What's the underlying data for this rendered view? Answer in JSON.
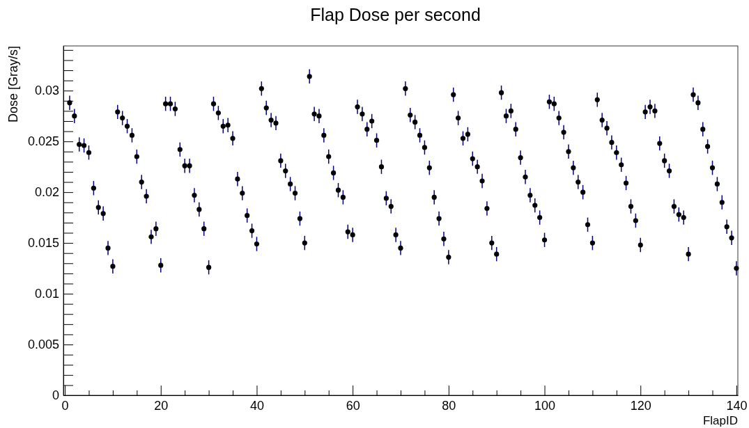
{
  "chart_data": {
    "type": "scatter",
    "title": "Flap Dose per second",
    "xlabel": "FlapID",
    "ylabel": "Dose [Gray/s]",
    "x": [
      1,
      2,
      3,
      4,
      5,
      6,
      7,
      8,
      9,
      10,
      11,
      12,
      13,
      14,
      15,
      16,
      17,
      18,
      19,
      20,
      21,
      22,
      23,
      24,
      25,
      26,
      27,
      28,
      29,
      30,
      31,
      32,
      33,
      34,
      35,
      36,
      37,
      38,
      39,
      40,
      41,
      42,
      43,
      44,
      45,
      46,
      47,
      48,
      49,
      50,
      51,
      52,
      53,
      54,
      55,
      56,
      57,
      58,
      59,
      60,
      61,
      62,
      63,
      64,
      65,
      66,
      67,
      68,
      69,
      70,
      71,
      72,
      73,
      74,
      75,
      76,
      77,
      78,
      79,
      80,
      81,
      82,
      83,
      84,
      85,
      86,
      87,
      88,
      89,
      90,
      91,
      92,
      93,
      94,
      95,
      96,
      97,
      98,
      99,
      100,
      101,
      102,
      103,
      104,
      105,
      106,
      107,
      108,
      109,
      110,
      111,
      112,
      113,
      114,
      115,
      116,
      117,
      118,
      119,
      120,
      121,
      122,
      123,
      124,
      125,
      126,
      127,
      128,
      129,
      130,
      131,
      132,
      133,
      134,
      135,
      136,
      137,
      138,
      139,
      140
    ],
    "series": [
      {
        "color": "#000000",
        "values": [
          0.0288,
          0.0275,
          0.0247,
          0.0246,
          0.0239,
          0.0204,
          0.0185,
          0.0179,
          0.0145,
          0.0127,
          0.0279,
          0.0273,
          0.0265,
          0.0256,
          0.0235,
          0.021,
          0.0196,
          0.0156,
          0.0164,
          0.0128,
          0.0287,
          0.0287,
          0.0282,
          0.0242,
          0.0226,
          0.0226,
          0.0197,
          0.0183,
          0.0164,
          0.0126,
          0.0287,
          0.0278,
          0.0265,
          0.0266,
          0.0253,
          0.0213,
          0.0199,
          0.0177,
          0.0162,
          0.0149,
          0.0302,
          0.0283,
          0.0271,
          0.0268,
          0.0231,
          0.0221,
          0.0208,
          0.0199,
          0.0174,
          0.015,
          0.0314,
          0.0277,
          0.0275,
          0.0256,
          0.0235,
          0.0219,
          0.0202,
          0.0195,
          0.0161,
          0.0158,
          0.0284,
          0.0277,
          0.0262,
          0.027,
          0.0251,
          0.0225,
          0.0194,
          0.0186,
          0.0158,
          0.0145,
          0.0302,
          0.0276,
          0.0269,
          0.0256,
          0.0244,
          0.0224,
          0.0195,
          0.0174,
          0.0154,
          0.0136,
          0.0296,
          0.0273,
          0.0253,
          0.0257,
          0.0233,
          0.0225,
          0.0211,
          0.0184,
          0.015,
          0.0139,
          0.0298,
          0.0275,
          0.028,
          0.0262,
          0.0234,
          0.0215,
          0.0197,
          0.0187,
          0.0175,
          0.0153,
          0.0289,
          0.0287,
          0.0273,
          0.0259,
          0.024,
          0.0224,
          0.021,
          0.02,
          0.0168,
          0.015,
          0.0291,
          0.0271,
          0.0263,
          0.0249,
          0.0239,
          0.0227,
          0.0209,
          0.0186,
          0.0172,
          0.0148,
          0.0279,
          0.0284,
          0.028,
          0.0248,
          0.0231,
          0.0221,
          0.0186,
          0.0178,
          0.0175,
          0.0139,
          0.0296,
          0.0288,
          0.0262,
          0.0245,
          0.0224,
          0.0208,
          0.019,
          0.0166,
          0.0155,
          0.0125
        ],
        "errors": [
          0.0007,
          0.0007,
          0.0007,
          0.0007,
          0.0007,
          0.0007,
          0.0007,
          0.0007,
          0.0007,
          0.0007,
          0.0007,
          0.0007,
          0.0007,
          0.0007,
          0.0007,
          0.0007,
          0.0007,
          0.0007,
          0.0007,
          0.0007,
          0.0007,
          0.0007,
          0.0007,
          0.0007,
          0.0007,
          0.0007,
          0.0007,
          0.0007,
          0.0007,
          0.0007,
          0.0007,
          0.0007,
          0.0007,
          0.0007,
          0.0007,
          0.0007,
          0.0007,
          0.0007,
          0.0007,
          0.0007,
          0.0007,
          0.0007,
          0.0007,
          0.0007,
          0.0007,
          0.0007,
          0.0007,
          0.0007,
          0.0007,
          0.0007,
          0.0007,
          0.0007,
          0.0007,
          0.0007,
          0.0007,
          0.0007,
          0.0007,
          0.0007,
          0.0007,
          0.0007,
          0.0007,
          0.0007,
          0.0007,
          0.0007,
          0.0007,
          0.0007,
          0.0007,
          0.0007,
          0.0007,
          0.0007,
          0.0007,
          0.0007,
          0.0007,
          0.0007,
          0.0007,
          0.0007,
          0.0007,
          0.0007,
          0.0007,
          0.0007,
          0.0007,
          0.0007,
          0.0007,
          0.0007,
          0.0007,
          0.0007,
          0.0007,
          0.0007,
          0.0007,
          0.0007,
          0.0007,
          0.0007,
          0.0007,
          0.0007,
          0.0007,
          0.0007,
          0.0007,
          0.0007,
          0.0007,
          0.0007,
          0.0007,
          0.0007,
          0.0007,
          0.0007,
          0.0007,
          0.0007,
          0.0007,
          0.0007,
          0.0007,
          0.0007,
          0.0007,
          0.0007,
          0.0007,
          0.0007,
          0.0007,
          0.0007,
          0.0007,
          0.0007,
          0.0007,
          0.0007,
          0.0007,
          0.0007,
          0.0007,
          0.0007,
          0.0007,
          0.0007,
          0.0007,
          0.0007,
          0.0007,
          0.0007,
          0.0007,
          0.0007,
          0.0007,
          0.0007,
          0.0007,
          0.0007,
          0.0007,
          0.0007,
          0.0007,
          0.0007
        ]
      }
    ],
    "xlim": [
      -0.3,
      140.3
    ],
    "ylim": [
      0,
      0.0344
    ],
    "xticks": [
      0,
      {
        "value": 5,
        "label": null
      },
      {
        "value": 10,
        "label": null
      },
      {
        "value": 15,
        "label": null
      },
      20,
      {
        "value": 25,
        "label": null
      },
      {
        "value": 30,
        "label": null
      },
      {
        "value": 35,
        "label": null
      },
      40,
      {
        "value": 45,
        "label": null
      },
      {
        "value": 50,
        "label": null
      },
      {
        "value": 55,
        "label": null
      },
      60,
      {
        "value": 65,
        "label": null
      },
      {
        "value": 70,
        "label": null
      },
      {
        "value": 75,
        "label": null
      },
      80,
      {
        "value": 85,
        "label": null
      },
      {
        "value": 90,
        "label": null
      },
      {
        "value": 95,
        "label": null
      },
      100,
      {
        "value": 105,
        "label": null
      },
      {
        "value": 110,
        "label": null
      },
      {
        "value": 115,
        "label": null
      },
      120,
      {
        "value": 125,
        "label": null
      },
      {
        "value": 130,
        "label": null
      },
      {
        "value": 135,
        "label": null
      },
      140
    ],
    "yticks": [
      0,
      {
        "value": 0.001,
        "label": null
      },
      {
        "value": 0.002,
        "label": null
      },
      {
        "value": 0.003,
        "label": null
      },
      {
        "value": 0.004,
        "label": null
      },
      0.005,
      {
        "value": 0.006,
        "label": null
      },
      {
        "value": 0.007,
        "label": null
      },
      {
        "value": 0.008,
        "label": null
      },
      {
        "value": 0.009,
        "label": null
      },
      0.01,
      {
        "value": 0.011,
        "label": null
      },
      {
        "value": 0.012,
        "label": null
      },
      {
        "value": 0.013,
        "label": null
      },
      {
        "value": 0.014,
        "label": null
      },
      0.015,
      {
        "value": 0.016,
        "label": null
      },
      {
        "value": 0.017,
        "label": null
      },
      {
        "value": 0.018,
        "label": null
      },
      {
        "value": 0.019,
        "label": null
      },
      0.02,
      {
        "value": 0.021,
        "label": null
      },
      {
        "value": 0.022,
        "label": null
      },
      {
        "value": 0.023,
        "label": null
      },
      {
        "value": 0.024,
        "label": null
      },
      0.025,
      {
        "value": 0.026,
        "label": null
      },
      {
        "value": 0.027,
        "label": null
      },
      {
        "value": 0.028,
        "label": null
      },
      {
        "value": 0.029,
        "label": null
      },
      0.03,
      {
        "value": 0.031,
        "label": null
      },
      {
        "value": 0.032,
        "label": null
      },
      {
        "value": 0.033,
        "label": null
      },
      {
        "value": 0.034,
        "label": null
      }
    ],
    "marker": "circle",
    "grid": false
  }
}
